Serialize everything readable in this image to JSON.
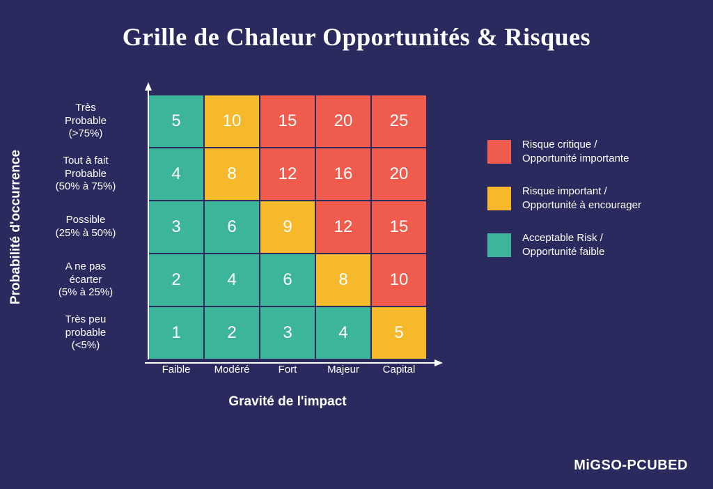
{
  "title": "Grille de Chaleur Opportunités & Risques",
  "title_fontsize": 36,
  "title_color": "#ffffff",
  "background_color": "#2b2a5e",
  "brand": "MiGSO-PCUBED",
  "brand_fontsize": 20,
  "colors": {
    "red": "#ef5b4c",
    "yellow": "#f6b92b",
    "green": "#3cb59a",
    "axis": "#ffffff",
    "text": "#ffffff",
    "grid_border": "#2b2a5e"
  },
  "font": {
    "axis_title_size": 19,
    "axis_label_size": 15,
    "cell_value_size": 24,
    "legend_size": 15
  },
  "axes": {
    "y_title": "Probabilité d'occurrence",
    "x_title": "Gravité de l'impact",
    "y_labels": [
      {
        "l1": "Très",
        "l2": "Probable",
        "l3": "(>75%)"
      },
      {
        "l1": "Tout à fait",
        "l2": "Probable",
        "l3": "(50% à 75%)"
      },
      {
        "l1": "Possible",
        "l2": "(25% à 50%)",
        "l3": ""
      },
      {
        "l1": "A ne pas",
        "l2": "écarter",
        "l3": "(5% à 25%)"
      },
      {
        "l1": "Très peu",
        "l2": "probable",
        "l3": "(<5%)"
      }
    ],
    "x_labels": [
      "Faible",
      "Modéré",
      "Fort",
      "Majeur",
      "Capital"
    ]
  },
  "heatmap": {
    "type": "heatmap",
    "rows": 5,
    "cols": 5,
    "cells": [
      [
        {
          "v": 5,
          "c": "green"
        },
        {
          "v": 10,
          "c": "yellow"
        },
        {
          "v": 15,
          "c": "red"
        },
        {
          "v": 20,
          "c": "red"
        },
        {
          "v": 25,
          "c": "red"
        }
      ],
      [
        {
          "v": 4,
          "c": "green"
        },
        {
          "v": 8,
          "c": "yellow"
        },
        {
          "v": 12,
          "c": "red"
        },
        {
          "v": 16,
          "c": "red"
        },
        {
          "v": 20,
          "c": "red"
        }
      ],
      [
        {
          "v": 3,
          "c": "green"
        },
        {
          "v": 6,
          "c": "green"
        },
        {
          "v": 9,
          "c": "yellow"
        },
        {
          "v": 12,
          "c": "red"
        },
        {
          "v": 15,
          "c": "red"
        }
      ],
      [
        {
          "v": 2,
          "c": "green"
        },
        {
          "v": 4,
          "c": "green"
        },
        {
          "v": 6,
          "c": "green"
        },
        {
          "v": 8,
          "c": "yellow"
        },
        {
          "v": 10,
          "c": "red"
        }
      ],
      [
        {
          "v": 1,
          "c": "green"
        },
        {
          "v": 2,
          "c": "green"
        },
        {
          "v": 3,
          "c": "green"
        },
        {
          "v": 4,
          "c": "green"
        },
        {
          "v": 5,
          "c": "yellow"
        }
      ]
    ]
  },
  "legend": [
    {
      "color": "red",
      "l1": "Risque critique /",
      "l2": "Opportunité importante"
    },
    {
      "color": "yellow",
      "l1": "Risque important /",
      "l2": "Opportunité à encourager"
    },
    {
      "color": "green",
      "l1": "Acceptable Risk /",
      "l2": "Opportunité faible"
    }
  ]
}
